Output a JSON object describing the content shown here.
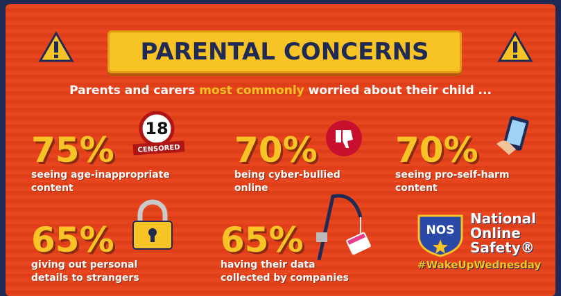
{
  "title": "PARENTAL CONCERNS",
  "subtitle": {
    "before": "Parents and carers ",
    "highlight": "most commonly",
    "after": " worried about their child ..."
  },
  "stats": [
    {
      "value": "75%",
      "lines": [
        "seeing age-inappropriate",
        "content"
      ]
    },
    {
      "value": "70%",
      "lines": [
        "being cyber-bullied",
        "online"
      ]
    },
    {
      "value": "70%",
      "lines": [
        "seeing pro-self-harm",
        "content"
      ]
    },
    {
      "value": "65%",
      "lines": [
        "giving out personal",
        "details to strangers"
      ]
    },
    {
      "value": "65%",
      "lines": [
        "having their data",
        "collected by companies"
      ]
    }
  ],
  "icons": {
    "age_number": "18",
    "censored": "CENSORED"
  },
  "logo": {
    "badge": "NOS",
    "lines": [
      "National",
      "Online",
      "Safety®"
    ],
    "hashtag": "#WakeUpWednesday"
  }
}
